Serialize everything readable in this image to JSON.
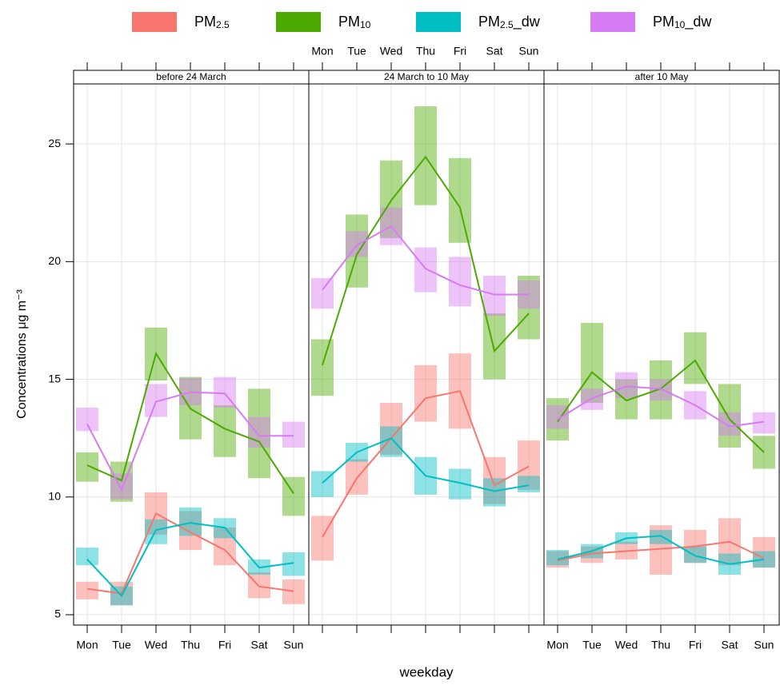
{
  "chart_data": {
    "type": "line",
    "x_label": "weekday",
    "y_label": "Concentrations μg m⁻³",
    "categories": [
      "Mon",
      "Tue",
      "Wed",
      "Thu",
      "Fri",
      "Sat",
      "Sun"
    ],
    "ylim": [
      4.56,
      27.55
    ],
    "yticks": [
      5,
      10,
      15,
      20,
      25
    ],
    "grid": true,
    "series": [
      {
        "name": "PM2.5",
        "color": "#F8766D"
      },
      {
        "name": "PM10",
        "color": "#4DAA00"
      },
      {
        "name": "PM2.5_dw",
        "color": "#00BFC4"
      },
      {
        "name": "PM10_dw",
        "color": "#D77BF5"
      }
    ],
    "panels": [
      {
        "title": "before 24 March",
        "series": [
          {
            "values": [
              6.1,
              5.9,
              9.3,
              8.5,
              7.75,
              6.2,
              6.0
            ],
            "lower": [
              5.65,
              5.4,
              8.4,
              7.75,
              7.1,
              5.7,
              5.45
            ],
            "upper": [
              6.4,
              6.4,
              10.2,
              9.4,
              8.7,
              6.8,
              6.5
            ]
          },
          {
            "values": [
              11.35,
              10.7,
              16.1,
              13.75,
              12.9,
              12.35,
              10.15
            ],
            "lower": [
              10.65,
              9.8,
              14.95,
              12.45,
              11.7,
              10.8,
              9.2
            ],
            "upper": [
              11.9,
              11.5,
              17.2,
              15.1,
              13.9,
              14.6,
              10.85
            ]
          },
          {
            "values": [
              7.35,
              5.8,
              8.6,
              8.9,
              8.7,
              7.0,
              7.2
            ],
            "lower": [
              7.1,
              5.4,
              8.0,
              8.35,
              8.25,
              6.7,
              6.65
            ],
            "upper": [
              7.85,
              6.2,
              9.05,
              9.55,
              9.1,
              7.35,
              7.65
            ]
          },
          {
            "values": [
              13.1,
              10.3,
              14.05,
              14.45,
              14.4,
              12.6,
              12.6
            ],
            "lower": [
              12.8,
              9.9,
              13.4,
              13.9,
              13.8,
              12.1,
              12.1
            ],
            "upper": [
              13.8,
              11.0,
              14.8,
              15.05,
              15.1,
              13.4,
              13.2
            ]
          }
        ]
      },
      {
        "title": "24 March to 10 May",
        "series": [
          {
            "values": [
              8.3,
              10.8,
              12.5,
              14.2,
              14.5,
              10.5,
              11.3
            ],
            "lower": [
              7.3,
              10.1,
              11.8,
              13.2,
              12.9,
              9.7,
              10.3
            ],
            "upper": [
              9.2,
              11.6,
              14.0,
              15.6,
              16.1,
              11.7,
              12.4
            ]
          },
          {
            "values": [
              15.6,
              20.3,
              22.6,
              24.45,
              22.3,
              16.2,
              17.8
            ],
            "lower": [
              14.3,
              18.9,
              21.0,
              22.4,
              20.8,
              15.0,
              16.7
            ],
            "upper": [
              16.7,
              22.0,
              24.3,
              26.6,
              24.4,
              17.8,
              19.4
            ]
          },
          {
            "values": [
              10.6,
              11.9,
              12.5,
              10.9,
              10.6,
              10.25,
              10.5
            ],
            "lower": [
              10.0,
              11.5,
              11.7,
              10.1,
              9.9,
              9.6,
              10.2
            ],
            "upper": [
              11.1,
              12.3,
              13.0,
              11.7,
              11.2,
              10.8,
              10.9
            ]
          },
          {
            "values": [
              18.8,
              20.7,
              21.5,
              19.7,
              19.0,
              18.6,
              18.6
            ],
            "lower": [
              18.0,
              20.2,
              20.7,
              18.7,
              18.1,
              17.7,
              18.0
            ],
            "upper": [
              19.3,
              21.3,
              22.3,
              20.6,
              20.2,
              19.4,
              19.2
            ]
          }
        ]
      },
      {
        "title": "after 10 May",
        "series": [
          {
            "values": [
              7.3,
              7.6,
              7.7,
              7.8,
              7.9,
              8.1,
              7.4
            ],
            "lower": [
              7.0,
              7.2,
              7.35,
              6.7,
              7.2,
              7.1,
              7.0
            ],
            "upper": [
              7.7,
              7.9,
              8.1,
              8.8,
              8.6,
              9.1,
              8.3
            ]
          },
          {
            "values": [
              13.2,
              15.3,
              14.1,
              14.6,
              15.8,
              13.3,
              11.9
            ],
            "lower": [
              12.4,
              14.0,
              13.3,
              13.3,
              14.8,
              12.1,
              11.2
            ],
            "upper": [
              14.2,
              17.4,
              15.0,
              15.8,
              17.0,
              14.8,
              12.6
            ]
          },
          {
            "values": [
              7.35,
              7.7,
              8.25,
              8.35,
              7.5,
              7.15,
              7.35
            ],
            "lower": [
              7.1,
              7.4,
              8.0,
              8.0,
              7.2,
              6.7,
              7.0
            ],
            "upper": [
              7.75,
              8.0,
              8.5,
              8.6,
              7.9,
              7.6,
              7.7
            ]
          },
          {
            "values": [
              13.3,
              14.2,
              14.7,
              14.6,
              13.9,
              13.0,
              13.2
            ],
            "lower": [
              12.9,
              13.7,
              14.2,
              14.1,
              13.3,
              12.6,
              12.7
            ],
            "upper": [
              13.9,
              14.6,
              15.3,
              15.0,
              14.5,
              13.6,
              13.6
            ]
          }
        ]
      }
    ]
  }
}
